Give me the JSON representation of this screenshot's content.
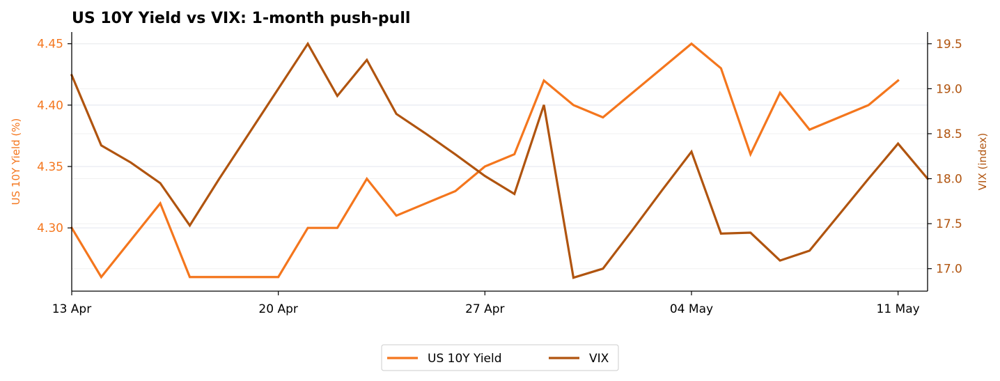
{
  "chart_data": {
    "type": "line",
    "title": "US 10Y Yield vs VIX: 1-month push-pull",
    "x": [
      "2024-04-13",
      "2024-04-14",
      "2024-04-15",
      "2024-04-16",
      "2024-04-17",
      "2024-04-18",
      "2024-04-19",
      "2024-04-20",
      "2024-04-21",
      "2024-04-22",
      "2024-04-23",
      "2024-04-24",
      "2024-04-25",
      "2024-04-26",
      "2024-04-27",
      "2024-04-28",
      "2024-04-29",
      "2024-04-30",
      "2024-05-01",
      "2024-05-02",
      "2024-05-03",
      "2024-05-04",
      "2024-05-05",
      "2024-05-06",
      "2024-05-07",
      "2024-05-08",
      "2024-05-09",
      "2024-05-10",
      "2024-05-11",
      "2024-05-12"
    ],
    "x_ticks": [
      "13 Apr",
      "20 Apr",
      "27 Apr",
      "04 May",
      "11 May"
    ],
    "x_tick_dates": [
      "2024-04-13",
      "2024-04-20",
      "2024-04-27",
      "2024-05-04",
      "2024-05-11"
    ],
    "series": [
      {
        "name": "US 10Y Yield",
        "axis": "left",
        "color": "#f4761d",
        "values": [
          4.3,
          4.26,
          4.29,
          4.32,
          4.26,
          4.26,
          4.26,
          4.26,
          4.3,
          4.3,
          4.34,
          4.31,
          4.32,
          4.33,
          4.35,
          4.36,
          4.42,
          4.4,
          4.39,
          4.41,
          4.43,
          4.45,
          4.43,
          4.36,
          4.41,
          4.38,
          4.39,
          4.4,
          4.42,
          null
        ]
      },
      {
        "name": "VIX",
        "axis": "right",
        "color": "#b0540f",
        "values": [
          19.15,
          18.37,
          18.18,
          17.95,
          17.48,
          18.0,
          18.5,
          19.0,
          19.5,
          18.92,
          19.32,
          18.72,
          18.5,
          18.27,
          18.03,
          17.83,
          18.82,
          16.9,
          17.0,
          17.43,
          17.87,
          18.3,
          17.39,
          17.4,
          17.09,
          17.2,
          17.6,
          18.0,
          18.39,
          18.0
        ]
      }
    ],
    "y_left": {
      "label": "US 10Y Yield (%)",
      "ticks": [
        "4.30",
        "4.35",
        "4.40",
        "4.45"
      ],
      "range": [
        4.2485,
        4.4595
      ]
    },
    "y_right": {
      "label": "VIX (index)",
      "ticks": [
        "17.0",
        "17.5",
        "18.0",
        "18.5",
        "19.0",
        "19.5"
      ],
      "range": [
        16.75,
        19.63
      ]
    },
    "grid": true,
    "legend_position": "bottom-center"
  }
}
